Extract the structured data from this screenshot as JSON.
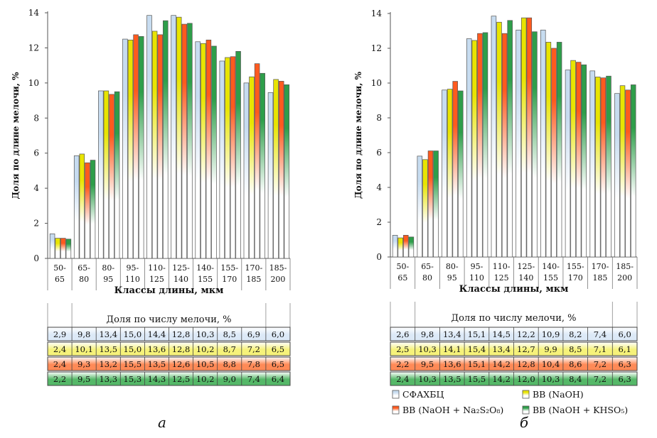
{
  "colors": {
    "series": [
      "#c7dcf0",
      "#e8e400",
      "#ff5a1e",
      "#2e9e4a"
    ],
    "table_bg": [
      "#dce9f7",
      "#f6f27a",
      "#ff8a57",
      "#55b868"
    ],
    "axis": "#555555"
  },
  "legend": [
    {
      "label": "СФАХБЦ"
    },
    {
      "label": "ВВ (NaOH)"
    },
    {
      "label": "ВВ (NaOH + Na₂S₂O₈)"
    },
    {
      "label": "ВВ (NaOH + KHSO₅)"
    }
  ],
  "chart_data": [
    {
      "type": "bar",
      "panel_label": "а",
      "ylabel": "Доля по длине мелочи, %",
      "xlabel": "Классы длины, мкм",
      "ylim": [
        0,
        14
      ],
      "yticks": [
        "0",
        "2",
        "4",
        "6",
        "8",
        "10",
        "12",
        "14"
      ],
      "categories": [
        {
          "top": "50-",
          "bottom": "65"
        },
        {
          "top": "65-",
          "bottom": "80"
        },
        {
          "top": "80-",
          "bottom": "95"
        },
        {
          "top": "95-",
          "bottom": "110"
        },
        {
          "top": "110-",
          "bottom": "125"
        },
        {
          "top": "125-",
          "bottom": "140"
        },
        {
          "top": "140-",
          "bottom": "155"
        },
        {
          "top": "155-",
          "bottom": "170"
        },
        {
          "top": "170-",
          "bottom": "185"
        },
        {
          "top": "185-",
          "bottom": "200"
        }
      ],
      "series": [
        {
          "values": [
            1.4,
            5.85,
            9.55,
            12.5,
            13.85,
            13.85,
            12.35,
            11.25,
            10.0,
            9.45
          ]
        },
        {
          "values": [
            1.15,
            5.95,
            9.55,
            12.45,
            12.95,
            13.75,
            12.25,
            11.45,
            10.35,
            10.2
          ]
        },
        {
          "values": [
            1.15,
            5.45,
            9.35,
            12.75,
            12.75,
            13.35,
            12.45,
            11.5,
            11.1,
            10.1
          ]
        },
        {
          "values": [
            1.1,
            5.6,
            9.5,
            12.65,
            13.55,
            13.4,
            12.1,
            11.8,
            10.55,
            9.9
          ]
        }
      ],
      "table": {
        "title": "Доля по числу мелочи, %",
        "rows": [
          [
            "2,9",
            "9,8",
            "13,4",
            "15,0",
            "14,4",
            "12,8",
            "10,3",
            "8,5",
            "6,9",
            "6,0"
          ],
          [
            "2,4",
            "10,1",
            "13,5",
            "15,0",
            "13,6",
            "12,8",
            "10,2",
            "8,7",
            "7,2",
            "6,5"
          ],
          [
            "2,4",
            "9,3",
            "13,2",
            "15,5",
            "13,5",
            "12,6",
            "10,5",
            "8,8",
            "7,8",
            "6,5"
          ],
          [
            "2,2",
            "9,5",
            "13,3",
            "15,3",
            "14,3",
            "12,5",
            "10,2",
            "9,0",
            "7,4",
            "6,4"
          ]
        ]
      }
    },
    {
      "type": "bar",
      "panel_label": "б",
      "ylabel": "Доля по длине мелочи, %",
      "xlabel": "Классы длины, мкм",
      "ylim": [
        0,
        14
      ],
      "yticks": [
        "0",
        "2",
        "4",
        "6",
        "8",
        "10",
        "12",
        "14"
      ],
      "categories": [
        {
          "top": "50-",
          "bottom": "65"
        },
        {
          "top": "65-",
          "bottom": "80"
        },
        {
          "top": "80-",
          "bottom": "95"
        },
        {
          "top": "95-",
          "bottom": "110"
        },
        {
          "top": "110-",
          "bottom": "125"
        },
        {
          "top": "125-",
          "bottom": "140"
        },
        {
          "top": "140-",
          "bottom": "155"
        },
        {
          "top": "155-",
          "bottom": "170"
        },
        {
          "top": "170-",
          "bottom": "185"
        },
        {
          "top": "185-",
          "bottom": "200"
        }
      ],
      "series": [
        {
          "values": [
            1.25,
            5.8,
            9.6,
            12.55,
            13.85,
            13.05,
            13.05,
            10.75,
            10.7,
            9.4
          ]
        },
        {
          "values": [
            1.1,
            5.6,
            9.65,
            12.45,
            13.5,
            13.75,
            12.35,
            11.3,
            10.35,
            9.85
          ]
        },
        {
          "values": [
            1.25,
            6.1,
            10.1,
            12.85,
            12.85,
            13.75,
            12.0,
            11.2,
            10.3,
            9.6
          ]
        },
        {
          "values": [
            1.15,
            6.1,
            9.55,
            12.9,
            13.6,
            12.95,
            12.35,
            11.05,
            10.4,
            9.9
          ]
        }
      ],
      "table": {
        "title": "Доля по числу мелочи, %",
        "rows": [
          [
            "2,6",
            "9,8",
            "13,4",
            "15,1",
            "14,5",
            "12,2",
            "10,9",
            "8,2",
            "7,4",
            "6,0"
          ],
          [
            "2,5",
            "10,3",
            "14,1",
            "15,4",
            "13,4",
            "12,7",
            "9,9",
            "8,5",
            "7,1",
            "6,1"
          ],
          [
            "2,2",
            "9,5",
            "13,6",
            "15,1",
            "14,2",
            "12,8",
            "10,4",
            "8,6",
            "7,2",
            "6,3"
          ],
          [
            "2,4",
            "10,3",
            "13,5",
            "15,5",
            "14,2",
            "12,0",
            "10,3",
            "8,4",
            "7,2",
            "6,3"
          ]
        ]
      }
    }
  ]
}
